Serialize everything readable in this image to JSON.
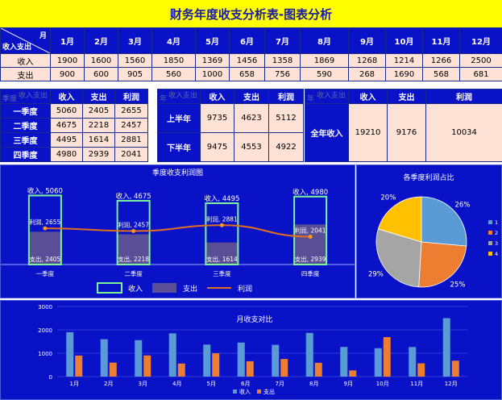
{
  "title": "财务年度收支分析表-图表分析",
  "monthly": {
    "corner_top": "月",
    "corner_bottom": "收入支出",
    "months": [
      "1月",
      "2月",
      "3月",
      "4月",
      "5月",
      "6月",
      "7月",
      "8月",
      "9月",
      "10月",
      "11月",
      "12月"
    ],
    "income_label": "收入",
    "expense_label": "支出",
    "income": [
      1900,
      1600,
      1560,
      1850,
      1369,
      1456,
      1358,
      1869,
      1268,
      1214,
      1266,
      2500
    ],
    "expense": [
      900,
      600,
      905,
      560,
      1000,
      658,
      756,
      590,
      268,
      1690,
      568,
      681
    ]
  },
  "quarter_table": {
    "corner_top": "收入支出",
    "corner_bottom": "季度",
    "headers": [
      "收入",
      "支出",
      "利润"
    ],
    "rows": [
      {
        "name": "一季度",
        "income": "5060",
        "expense": "2405",
        "profit": "2655"
      },
      {
        "name": "二季度",
        "income": "4675",
        "expense": "2218",
        "profit": "2457"
      },
      {
        "name": "三季度",
        "income": "4495",
        "expense": "1614",
        "profit": "2881"
      },
      {
        "name": "四季度",
        "income": "4980",
        "expense": "2939",
        "profit": "2041"
      }
    ]
  },
  "half_table": {
    "corner_top": "收入支出",
    "corner_bottom": "年",
    "headers": [
      "收入",
      "支出",
      "利润"
    ],
    "rows": [
      {
        "name": "上半年",
        "income": "9735",
        "expense": "4623",
        "profit": "5112"
      },
      {
        "name": "下半年",
        "income": "9475",
        "expense": "4553",
        "profit": "4922"
      }
    ]
  },
  "year_table": {
    "corner_top": "收入支出",
    "corner_bottom": "年",
    "headers": [
      "收入",
      "支出",
      "利润"
    ],
    "row": {
      "name": "全年收入",
      "income": "19210",
      "expense": "9176",
      "profit": "10034"
    }
  },
  "colors": {
    "panel_bg": "#0a12c8",
    "income_border": "#7cf59a",
    "expense_fill": "#5a4f96",
    "profit_line": "#e0701a",
    "pie": [
      "#5b9bd5",
      "#ed7d31",
      "#a5a5a5",
      "#ffc000"
    ],
    "bar_income": "#5b9bd5",
    "bar_expense": "#ed7d31"
  },
  "chart_data": [
    {
      "type": "bar",
      "title": "季度收支利润图",
      "categories": [
        "一季度",
        "二季度",
        "三季度",
        "四季度"
      ],
      "series": [
        {
          "name": "收入",
          "values": [
            5060,
            4675,
            4495,
            4980
          ],
          "label_prefix": "收入"
        },
        {
          "name": "支出",
          "values": [
            2405,
            2218,
            1614,
            2939
          ],
          "label_prefix": "支出"
        },
        {
          "name": "利润",
          "values": [
            2655,
            2457,
            2881,
            2041
          ],
          "label_prefix": "利润",
          "render": "line"
        }
      ],
      "legend_position": "bottom",
      "ylim": [
        0,
        5500
      ]
    },
    {
      "type": "pie",
      "title": "各季度利润占比",
      "labels": [
        "1",
        "2",
        "3",
        "4"
      ],
      "values": [
        2655,
        2457,
        2881,
        2041
      ],
      "percent_labels": [
        "26%",
        "25%",
        "29%",
        "20%"
      ],
      "legend_position": "right"
    },
    {
      "type": "bar",
      "title": "月收支对比",
      "categories": [
        "1月",
        "2月",
        "3月",
        "4月",
        "5月",
        "6月",
        "7月",
        "8月",
        "9月",
        "10月",
        "11月",
        "12月"
      ],
      "series": [
        {
          "name": "收入",
          "values": [
            1900,
            1600,
            1560,
            1850,
            1369,
            1456,
            1358,
            1869,
            1268,
            1214,
            1266,
            2500
          ]
        },
        {
          "name": "支出",
          "values": [
            900,
            600,
            905,
            560,
            1000,
            658,
            756,
            590,
            268,
            1690,
            568,
            681
          ]
        }
      ],
      "yticks": [
        "0",
        "1000",
        "2000",
        "3000"
      ],
      "ylim": [
        0,
        3000
      ],
      "grid": true,
      "legend_position": "bottom"
    }
  ]
}
